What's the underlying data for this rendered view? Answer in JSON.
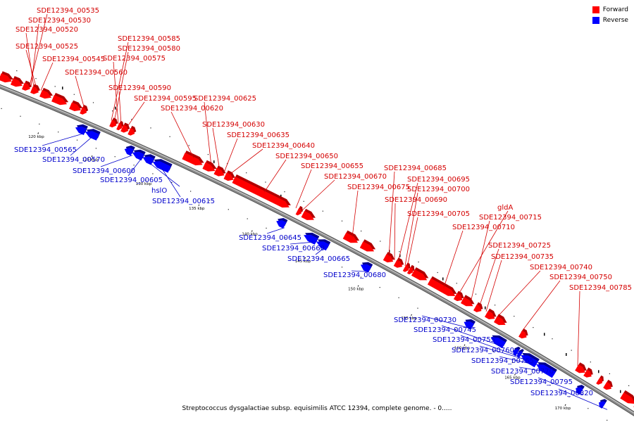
{
  "legend": {
    "forward_label": "Forward",
    "reverse_label": "Reverse",
    "forward_color": "#ff0000",
    "reverse_color": "#0000ff"
  },
  "caption": "Streptococcus dysgalactiae subsp. equisimilis ATCC 12394, complete genome. - 0.....",
  "colors": {
    "forward": "#ff0000",
    "reverse": "#0000ff",
    "axis": "#888888",
    "forward_label": "#d40000",
    "reverse_label": "#0000cc"
  },
  "ticks": [
    "120 kbp",
    "125 kbp",
    "130 kbp",
    "135 kbp",
    "140 kbp",
    "145 kbp",
    "150 kbp",
    "155 kbp",
    "160 kbp",
    "165 kbp",
    "170 kbp",
    "175 kbp"
  ],
  "forward_genes": [
    "SDE12394_00535",
    "SDE12394_00530",
    "SDE12394_00520",
    "SDE12394_00525",
    "SDE12394_00545",
    "SDE12394_00560",
    "SDE12394_00585",
    "SDE12394_00580",
    "SDE12394_00575",
    "SDE12394_00590",
    "SDE12394_00595",
    "SDE12394_00625",
    "SDE12394_00620",
    "SDE12394_00630",
    "SDE12394_00635",
    "SDE12394_00640",
    "SDE12394_00650",
    "SDE12394_00655",
    "SDE12394_00670",
    "SDE12394_00675",
    "SDE12394_00685",
    "SDE12394_00695",
    "SDE12394_00700",
    "SDE12394_00690",
    "SDE12394_00705",
    "gldA",
    "SDE12394_00715",
    "SDE12394_00710",
    "SDE12394_00725",
    "SDE12394_00735",
    "SDE12394_00740",
    "SDE12394_00750",
    "SDE12394_00785"
  ],
  "reverse_genes": [
    "SDE12394_00565",
    "SDE12394_00570",
    "SDE12394_00600",
    "SDE12394_00605",
    "hslO",
    "SDE12394_00615",
    "SDE12394_00645",
    "SDE12394_00660",
    "SDE12394_00665",
    "SDE12394_00680",
    "SDE12394_00730",
    "SDE12394_00745",
    "SDE12394_00755",
    "SDE12394_00760",
    "SDE12394_00765",
    "SDE12394_00770",
    "SDE12394_00795",
    "SDE12394_00820"
  ]
}
